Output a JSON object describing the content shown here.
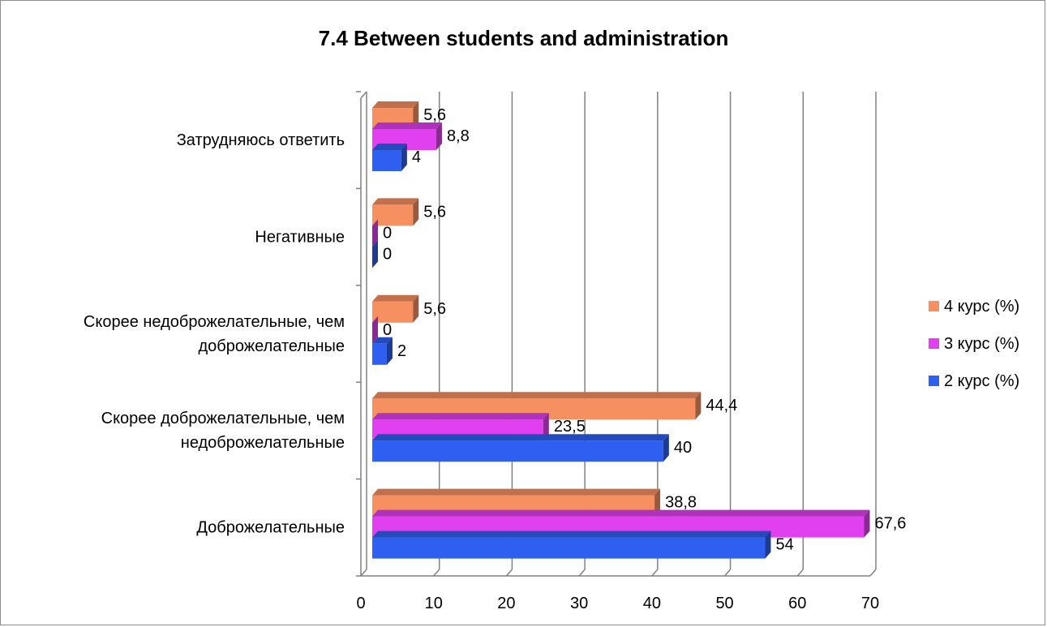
{
  "chart_data": {
    "type": "bar",
    "orientation": "horizontal",
    "title": "7.4 Between students and administration",
    "categories": [
      "Доброжелательные",
      "Скорее доброжелательные, чем недоброжелательные",
      "Скорее недоброжелательные, чем доброжелательные",
      "Негативные",
      "Затрудняюсь ответить"
    ],
    "category_lines": [
      [
        "Доброжелательные"
      ],
      [
        "Скорее доброжелательные, чем",
        "недоброжелательные"
      ],
      [
        "Скорее недоброжелательные, чем",
        "доброжелательные"
      ],
      [
        "Негативные"
      ],
      [
        "Затрудняюсь ответить"
      ]
    ],
    "series": [
      {
        "name": "2 курс (%)",
        "color": "#2f5ff0",
        "values": [
          54,
          40,
          2,
          0,
          4
        ],
        "labels": [
          "54",
          "40",
          "2",
          "0",
          "4"
        ]
      },
      {
        "name": "3 курс (%)",
        "color": "#e040f0",
        "values": [
          67.6,
          23.5,
          0,
          0,
          8.8
        ],
        "labels": [
          "67,6",
          "23,5",
          "0",
          "0",
          "8,8"
        ]
      },
      {
        "name": "4 курс (%)",
        "color": "#f79060",
        "values": [
          38.8,
          44.4,
          5.6,
          5.6,
          5.6
        ],
        "labels": [
          "38,8",
          "44,4",
          "5,6",
          "5,6",
          "5,6"
        ]
      }
    ],
    "xlim": [
      0,
      70
    ],
    "xticks": [
      "0",
      "10",
      "20",
      "30",
      "40",
      "50",
      "60",
      "70"
    ],
    "xlabel": "",
    "ylabel": "",
    "grid": true,
    "legend_position": "right",
    "legend_order": [
      "4 курс (%)",
      "3 курс (%)",
      "2 курс (%)"
    ]
  }
}
